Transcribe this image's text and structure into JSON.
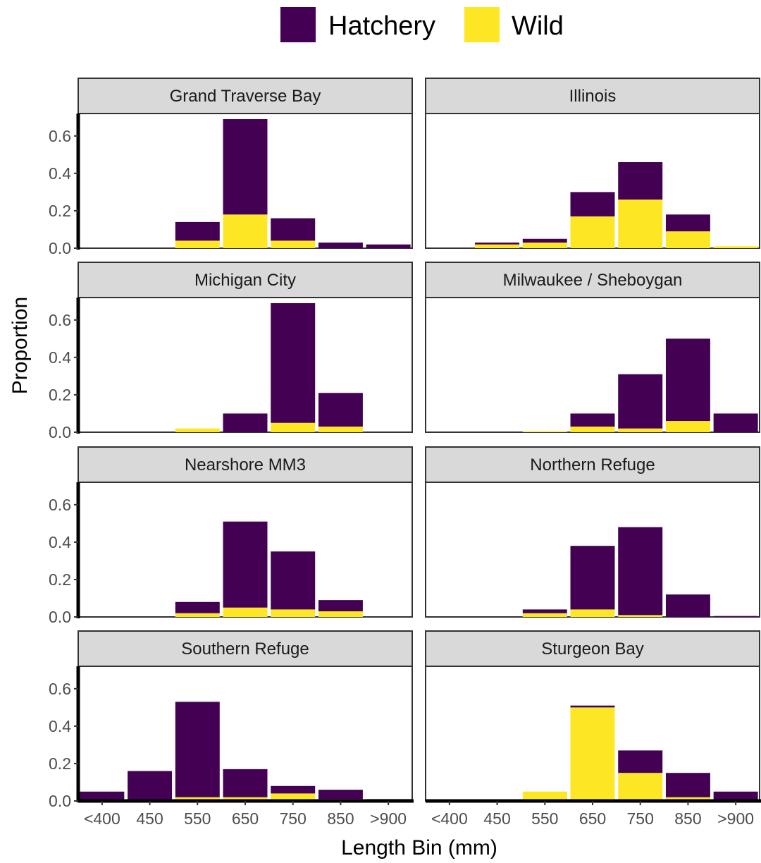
{
  "chart_data": {
    "type": "bar",
    "stacked": true,
    "categories": [
      "<400",
      "450",
      "550",
      "650",
      "750",
      "850",
      ">900"
    ],
    "xlabel": "Length Bin (mm)",
    "ylabel": "Proportion",
    "ylim": [
      0,
      0.72
    ],
    "yticks": [
      0.0,
      0.2,
      0.4,
      0.6
    ],
    "ytick_labels": [
      "0.0",
      "0.2",
      "0.4",
      "0.6"
    ],
    "legend": {
      "position": "top",
      "entries": [
        {
          "name": "Hatchery",
          "color": "#440154"
        },
        {
          "name": "Wild",
          "color": "#FDE725"
        }
      ]
    },
    "grid": false,
    "panels": [
      {
        "title": "Grand Traverse Bay",
        "hatchery": [
          0,
          0,
          0.1,
          0.51,
          0.12,
          0.03,
          0.02
        ],
        "wild": [
          0,
          0,
          0.04,
          0.18,
          0.04,
          0,
          0
        ]
      },
      {
        "title": "Illinois",
        "hatchery": [
          0,
          0.01,
          0.02,
          0.13,
          0.2,
          0.09,
          0
        ],
        "wild": [
          0,
          0.02,
          0.03,
          0.17,
          0.26,
          0.09,
          0.01
        ]
      },
      {
        "title": "Michigan City",
        "hatchery": [
          0,
          0,
          0,
          0.1,
          0.64,
          0.18,
          0
        ],
        "wild": [
          0,
          0,
          0.02,
          0,
          0.05,
          0.03,
          0
        ]
      },
      {
        "title": "Milwaukee / Sheboygan",
        "hatchery": [
          0,
          0,
          0,
          0.07,
          0.29,
          0.44,
          0.1
        ],
        "wild": [
          0,
          0,
          0.005,
          0.03,
          0.02,
          0.06,
          0
        ]
      },
      {
        "title": "Nearshore MM3",
        "hatchery": [
          0,
          0,
          0.06,
          0.46,
          0.31,
          0.06,
          0
        ],
        "wild": [
          0,
          0,
          0.02,
          0.05,
          0.04,
          0.03,
          0
        ]
      },
      {
        "title": "Northern Refuge",
        "hatchery": [
          0,
          0,
          0.02,
          0.34,
          0.47,
          0.12,
          0.005
        ],
        "wild": [
          0,
          0,
          0.02,
          0.04,
          0.01,
          0,
          0
        ]
      },
      {
        "title": "Southern Refuge",
        "hatchery": [
          0.05,
          0.16,
          0.51,
          0.15,
          0.04,
          0.05,
          0.01
        ],
        "wild": [
          0,
          0,
          0.02,
          0.02,
          0.04,
          0.01,
          0
        ]
      },
      {
        "title": "Sturgeon Bay",
        "hatchery": [
          0,
          0,
          0,
          0.01,
          0.12,
          0.13,
          0.05
        ],
        "wild": [
          0,
          0,
          0.05,
          0.5,
          0.15,
          0.02,
          0
        ]
      }
    ]
  }
}
